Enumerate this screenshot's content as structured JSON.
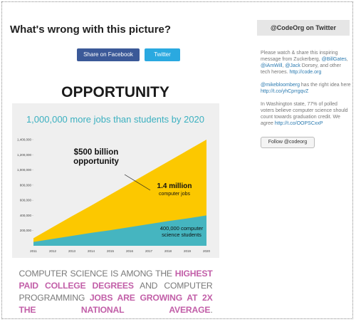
{
  "page": {
    "title": "What's wrong with this picture?",
    "share_buttons": [
      "Share on Facebook",
      "Twitter"
    ]
  },
  "infographic": {
    "heading": "OPPORTUNITY",
    "chart_data": {
      "type": "area",
      "title": "1,000,000 more jobs than students by 2020",
      "categories": [
        "2011",
        "2012",
        "2013",
        "2014",
        "2015",
        "2016",
        "2017",
        "2018",
        "2019",
        "2020"
      ],
      "series": [
        {
          "color": "#fcc800",
          "values": [
            100000,
            245000,
            390000,
            530000,
            675000,
            820000,
            965000,
            1110000,
            1255000,
            1400000
          ]
        },
        {
          "color": "#45b5c0",
          "values": [
            50000,
            90000,
            130000,
            170000,
            205000,
            245000,
            285000,
            325000,
            360000,
            400000
          ]
        }
      ],
      "ylim": [
        0,
        1400000
      ],
      "yticks": [
        {
          "value": 200000,
          "label": "200,000"
        },
        {
          "value": 400000,
          "label": "400,000"
        },
        {
          "value": 600000,
          "label": "600,000"
        },
        {
          "value": 800000,
          "label": "800,000"
        },
        {
          "value": 1000000,
          "label": "1,000,000"
        },
        {
          "value": 1200000,
          "label": "1,200,000"
        },
        {
          "value": 1400000,
          "label": "1,400,000"
        }
      ],
      "annotations": [
        [
          "$500 billion",
          "opportunity"
        ],
        [
          "1.4 million",
          "computer jobs"
        ],
        [
          "400,000 computer",
          "science students"
        ]
      ]
    },
    "caption": [
      {
        "text": "COMPUTER SCIENCE IS AMONG THE "
      },
      {
        "text": "HIGHEST PAID COLLEGE DEGREES",
        "highlight": true
      },
      {
        "text": " AND COMPUTER PROGRAMMING "
      },
      {
        "text": "JOBS ARE GROWING AT 2X THE NATIONAL AVERAGE",
        "highlight": true
      },
      {
        "text": "."
      }
    ]
  },
  "sidebar": {
    "title": "@CodeOrg on Twitter",
    "tweets": [
      [
        {
          "text": "Please watch & share this inspiring message from Zuckerberg, "
        },
        {
          "text": "@BillGates",
          "link": true
        },
        {
          "text": ", "
        },
        {
          "text": "@iAmWill",
          "link": true
        },
        {
          "text": ", "
        },
        {
          "text": "@Jack",
          "link": true
        },
        {
          "text": " Dorsey, and other tech heroes. "
        },
        {
          "text": "http://code.org",
          "link": true
        }
      ],
      [
        {
          "text": "@mikebloomberg",
          "link": true
        },
        {
          "text": " has the right idea here "
        },
        {
          "text": "http://t.co/yhCprrgqvZ",
          "link": true
        }
      ],
      [
        {
          "text": "In Washington state, 77% of polled voters believe computer science should count towards graduation credit. We agree "
        },
        {
          "text": "http://t.co/OOPSCxxP",
          "link": true
        }
      ]
    ],
    "follow_button": "Follow @codeorg"
  }
}
